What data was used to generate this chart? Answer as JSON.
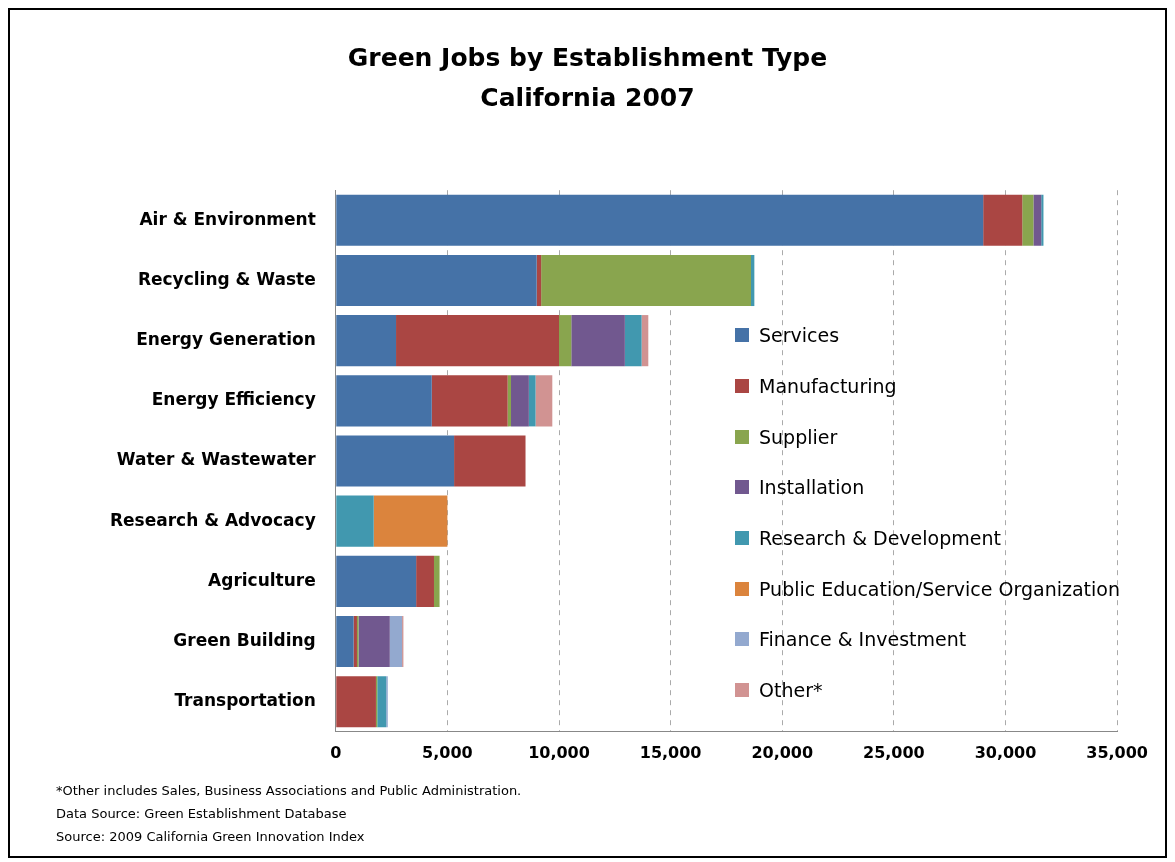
{
  "chart_data": {
    "type": "bar",
    "orientation": "horizontal",
    "stacked": true,
    "title": "Green Jobs by Establishment Type\nCalifornia 2007",
    "categories": [
      "Air & Environment",
      "Recycling & Waste",
      "Energy Generation",
      "Energy Efficiency",
      "Water & Wastewater",
      "Research & Advocacy",
      "Agriculture",
      "Green Building",
      "Transportation"
    ],
    "series": [
      {
        "name": "Services",
        "color": "#4572a7",
        "values": [
          29000,
          9000,
          2700,
          4300,
          5300,
          0,
          3600,
          800,
          0
        ]
      },
      {
        "name": "Manufacturing",
        "color": "#aa4643",
        "values": [
          1750,
          200,
          7300,
          3400,
          3200,
          0,
          800,
          150,
          1800
        ]
      },
      {
        "name": "Supplier",
        "color": "#89a54e",
        "values": [
          500,
          9400,
          550,
          150,
          0,
          0,
          250,
          70,
          60
        ]
      },
      {
        "name": "Installation",
        "color": "#71588f",
        "values": [
          350,
          0,
          2400,
          800,
          0,
          0,
          0,
          1400,
          0
        ]
      },
      {
        "name": "Research & Development",
        "color": "#4198af",
        "values": [
          100,
          150,
          750,
          300,
          0,
          1700,
          0,
          0,
          400
        ]
      },
      {
        "name": "Public Education/Service Organization",
        "color": "#db843d",
        "values": [
          0,
          0,
          0,
          0,
          0,
          3300,
          0,
          0,
          0
        ]
      },
      {
        "name": "Finance & Investment",
        "color": "#93a9cf",
        "values": [
          0,
          0,
          0,
          0,
          0,
          0,
          0,
          550,
          70
        ]
      },
      {
        "name": "Other*",
        "color": "#d19392",
        "values": [
          0,
          0,
          300,
          750,
          0,
          0,
          0,
          60,
          0
        ]
      }
    ],
    "xlim": [
      0,
      35000
    ],
    "xticks": [
      0,
      {
        "value": 5000,
        "label": "5,000"
      },
      {
        "value": 10000,
        "label": "10,000"
      },
      {
        "value": 15000,
        "label": "15,000"
      },
      {
        "value": 20000,
        "label": "20,000"
      },
      {
        "value": 25000,
        "label": "25,000"
      },
      {
        "value": 30000,
        "label": "30,000"
      },
      {
        "value": 35000,
        "label": "35,000"
      }
    ],
    "grid": "x",
    "legend": "right",
    "annotations": [
      "*Other includes Sales, Business Associations and  Public Administration.",
      "Data Source: Green Establishment Database",
      "Source: 2009 California Green Innovation Index"
    ]
  }
}
